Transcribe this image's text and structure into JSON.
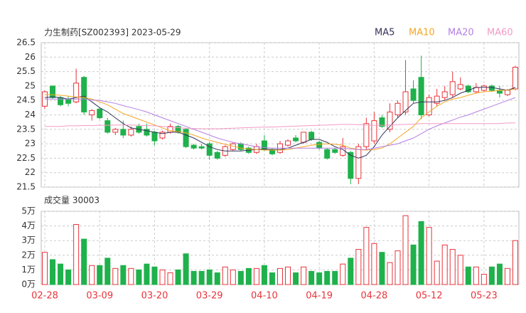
{
  "chart_data": {
    "type": "candlestick",
    "title": "力生制药[SZ002393] 2023-05-29",
    "volume_title": "成交量 30003",
    "categories": [
      "02-28",
      null,
      null,
      null,
      null,
      null,
      null,
      "03-09",
      null,
      null,
      null,
      null,
      null,
      null,
      "03-20",
      null,
      null,
      null,
      null,
      null,
      null,
      "03-29",
      null,
      null,
      null,
      null,
      null,
      null,
      "04-10",
      null,
      null,
      null,
      null,
      null,
      null,
      "04-19",
      null,
      null,
      null,
      null,
      null,
      null,
      "04-28",
      null,
      null,
      null,
      null,
      null,
      null,
      "05-12",
      null,
      null,
      null,
      null,
      null,
      null,
      "05-23",
      null,
      null,
      null,
      null
    ],
    "open": [
      24.3,
      25.0,
      24.6,
      24.55,
      24.45,
      25.3,
      24.0,
      24.2,
      23.8,
      23.4,
      23.5,
      23.3,
      23.6,
      23.5,
      23.4,
      23.2,
      23.4,
      23.6,
      23.5,
      22.95,
      22.9,
      23.0,
      22.7,
      22.6,
      22.8,
      23.0,
      22.85,
      22.7,
      23.1,
      22.8,
      22.7,
      22.95,
      23.2,
      23.05,
      23.4,
      23.05,
      22.8,
      22.8,
      22.6,
      22.7,
      21.8,
      22.9,
      23.1,
      23.9,
      23.5,
      24.0,
      24.1,
      24.9,
      25.3,
      24.0,
      24.4,
      24.6,
      24.7,
      24.9,
      25.0,
      24.8,
      24.85,
      25.0,
      24.85,
      24.7,
      24.9
    ],
    "close": [
      24.8,
      24.6,
      24.35,
      24.4,
      25.1,
      24.1,
      24.15,
      23.9,
      23.4,
      23.5,
      23.3,
      23.5,
      23.4,
      23.3,
      23.1,
      23.4,
      23.6,
      23.4,
      22.9,
      22.85,
      22.85,
      22.6,
      22.5,
      22.9,
      23.0,
      22.8,
      22.7,
      22.9,
      22.8,
      22.65,
      23.0,
      23.1,
      23.1,
      23.4,
      23.15,
      22.85,
      22.5,
      22.7,
      22.9,
      21.8,
      22.9,
      23.7,
      23.8,
      23.6,
      24.1,
      24.4,
      24.8,
      24.5,
      24.0,
      24.6,
      24.65,
      24.8,
      25.15,
      25.05,
      24.8,
      24.95,
      25.0,
      24.85,
      24.75,
      24.85,
      25.65
    ],
    "high": [
      24.85,
      25.0,
      24.65,
      24.65,
      25.6,
      25.35,
      24.2,
      24.25,
      23.9,
      23.55,
      23.8,
      23.6,
      23.7,
      23.7,
      23.45,
      23.45,
      23.7,
      23.65,
      23.55,
      23.0,
      23.0,
      23.05,
      22.75,
      22.95,
      23.05,
      23.05,
      22.9,
      23.0,
      23.3,
      22.85,
      23.1,
      23.15,
      23.3,
      23.4,
      23.45,
      23.1,
      22.85,
      22.85,
      23.2,
      22.75,
      23.0,
      23.9,
      24.1,
      24.0,
      24.4,
      24.5,
      25.9,
      25.2,
      26.05,
      24.7,
      24.9,
      25.0,
      25.5,
      25.3,
      25.05,
      25.1,
      25.05,
      25.05,
      25.0,
      24.9,
      25.7
    ],
    "low": [
      24.2,
      24.55,
      24.3,
      24.3,
      24.4,
      24.0,
      23.8,
      23.85,
      23.35,
      23.3,
      23.2,
      23.25,
      23.35,
      23.25,
      22.95,
      23.15,
      23.35,
      23.35,
      22.85,
      22.8,
      22.8,
      22.45,
      22.45,
      22.55,
      22.75,
      22.75,
      22.65,
      22.65,
      22.75,
      22.6,
      22.65,
      22.9,
      23.05,
      23.0,
      23.1,
      22.8,
      22.45,
      22.65,
      22.55,
      21.6,
      21.6,
      22.8,
      23.0,
      23.55,
      23.4,
      23.9,
      24.0,
      24.4,
      23.85,
      23.95,
      24.3,
      24.5,
      24.6,
      24.85,
      24.75,
      24.75,
      24.8,
      24.8,
      24.6,
      24.65,
      24.85
    ],
    "volume": [
      2.2,
      1.7,
      1.4,
      1.0,
      4.1,
      3.1,
      1.3,
      1.3,
      1.8,
      1.1,
      1.3,
      1.1,
      1.0,
      1.4,
      1.2,
      1.0,
      0.8,
      1.0,
      2.1,
      0.9,
      0.9,
      1.0,
      0.8,
      1.2,
      1.0,
      0.9,
      1.1,
      1.1,
      1.3,
      0.8,
      1.1,
      1.2,
      0.8,
      1.2,
      0.9,
      0.8,
      0.9,
      0.9,
      1.4,
      1.8,
      2.4,
      3.9,
      2.8,
      2.2,
      1.5,
      2.3,
      4.7,
      2.7,
      4.3,
      3.9,
      1.6,
      2.7,
      2.4,
      2.0,
      1.2,
      1.2,
      0.7,
      1.2,
      1.4,
      1.1,
      3.0
    ],
    "up_color": "#e8343b",
    "down_color": "#1fb14b",
    "series": [
      {
        "name": "MA5",
        "color": "#33335a",
        "values": [
          24.6,
          24.62,
          24.6,
          24.55,
          24.6,
          24.65,
          24.45,
          24.25,
          24.1,
          23.9,
          23.7,
          23.55,
          23.5,
          23.45,
          23.4,
          23.35,
          23.4,
          23.4,
          23.3,
          23.2,
          23.05,
          22.9,
          22.8,
          22.75,
          22.75,
          22.75,
          22.78,
          22.8,
          22.82,
          22.8,
          22.8,
          22.85,
          22.95,
          23.05,
          23.15,
          23.15,
          23.05,
          22.9,
          22.8,
          22.6,
          22.5,
          22.6,
          22.9,
          23.3,
          23.6,
          23.9,
          24.15,
          24.4,
          24.45,
          24.45,
          24.45,
          24.5,
          24.6,
          24.75,
          24.85,
          24.95,
          24.95,
          24.95,
          24.9,
          24.85,
          24.95
        ]
      },
      {
        "name": "MA10",
        "color": "#f5a623",
        "values": [
          24.7,
          24.7,
          24.68,
          24.65,
          24.62,
          24.6,
          24.55,
          24.45,
          24.35,
          24.2,
          24.05,
          23.95,
          23.85,
          23.75,
          23.65,
          23.55,
          23.45,
          23.42,
          23.38,
          23.3,
          23.2,
          23.12,
          23.05,
          22.98,
          22.92,
          22.85,
          22.82,
          22.8,
          22.78,
          22.78,
          22.78,
          22.8,
          22.85,
          22.9,
          22.95,
          22.98,
          23.0,
          22.98,
          22.95,
          22.85,
          22.8,
          22.78,
          22.8,
          22.85,
          23.0,
          23.2,
          23.4,
          23.6,
          23.9,
          24.1,
          24.3,
          24.45,
          24.55,
          24.6,
          24.68,
          24.75,
          24.8,
          24.82,
          24.85,
          24.85,
          24.9
        ]
      },
      {
        "name": "MA20",
        "color": "#b57fe0",
        "values": [
          24.55,
          24.55,
          24.55,
          24.55,
          24.55,
          24.55,
          24.52,
          24.5,
          24.45,
          24.4,
          24.32,
          24.25,
          24.18,
          24.1,
          24.0,
          23.9,
          23.8,
          23.7,
          23.6,
          23.5,
          23.4,
          23.3,
          23.2,
          23.12,
          23.05,
          23.0,
          22.95,
          22.9,
          22.87,
          22.85,
          22.85,
          22.85,
          22.85,
          22.85,
          22.85,
          22.85,
          22.85,
          22.85,
          22.85,
          22.82,
          22.8,
          22.8,
          22.85,
          22.9,
          22.95,
          23.0,
          23.1,
          23.2,
          23.35,
          23.5,
          23.62,
          23.72,
          23.82,
          23.92,
          24.0,
          24.1,
          24.2,
          24.3,
          24.4,
          24.5,
          24.6
        ]
      },
      {
        "name": "MA60",
        "color": "#f39ac6",
        "values": [
          23.6,
          23.6,
          23.6,
          23.62,
          23.62,
          23.63,
          23.63,
          23.64,
          23.64,
          23.65,
          23.65,
          23.65,
          23.64,
          23.63,
          23.62,
          23.6,
          23.58,
          23.56,
          23.54,
          23.53,
          23.52,
          23.52,
          23.52,
          23.53,
          23.54,
          23.55,
          23.56,
          23.57,
          23.58,
          23.58,
          23.59,
          23.6,
          23.61,
          23.62,
          23.63,
          23.64,
          23.65,
          23.66,
          23.67,
          23.67,
          23.66,
          23.65,
          23.64,
          23.64,
          23.65,
          23.66,
          23.67,
          23.68,
          23.7,
          23.7,
          23.7,
          23.7,
          23.7,
          23.7,
          23.7,
          23.7,
          23.7,
          23.7,
          23.7,
          23.72,
          23.72
        ]
      }
    ],
    "ylim": [
      21.5,
      26.5
    ],
    "yticks": [
      21.5,
      22,
      22.5,
      23,
      23.5,
      24,
      24.5,
      25,
      25.5,
      26,
      26.5
    ],
    "vlim": [
      0,
      5
    ],
    "vticks": [
      {
        "value": 0,
        "label": "0万"
      },
      {
        "value": 1,
        "label": "1万"
      },
      {
        "value": 2,
        "label": "2万"
      },
      {
        "value": 3,
        "label": "3万"
      },
      {
        "value": 4,
        "label": "4万"
      },
      {
        "value": 5,
        "label": "5万"
      }
    ],
    "grid": true
  }
}
